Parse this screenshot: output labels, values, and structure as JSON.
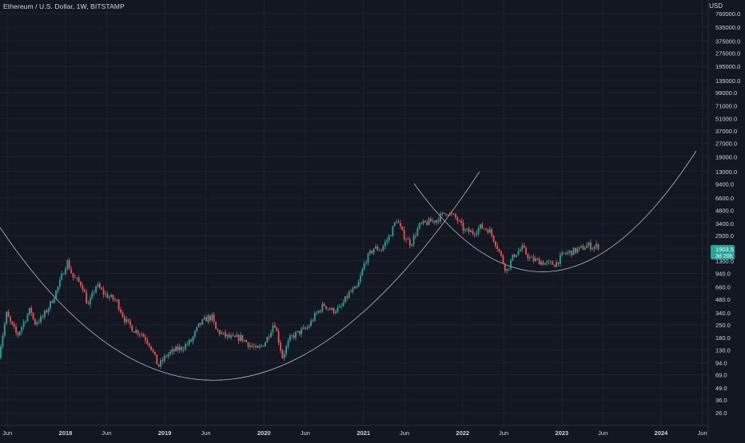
{
  "header": {
    "title": "Ethereum / U.S. Dollar, 1W, BITSTAMP",
    "currency": "USD"
  },
  "price_badge": {
    "price": "1903.5",
    "countdown": "3d 20h",
    "color": "#26a69a"
  },
  "colors": {
    "background": "#131722",
    "grid": "#1e222d",
    "axis_text": "#d1d4dc",
    "up": "#26a69a",
    "down": "#ef5350",
    "curve": "#b2b5be"
  },
  "chart_data": {
    "type": "candlestick",
    "scale": "log",
    "title": "Ethereum / U.S. Dollar, 1W, BITSTAMP",
    "ylabel": "USD",
    "ylim": [
      22,
      1000000
    ],
    "grid": true,
    "y_ticks": [
      "760000.0",
      "535000.0",
      "375000.0",
      "275000.0",
      "195000.0",
      "135000.0",
      "99000.0",
      "71000.0",
      "51000.0",
      "37000.0",
      "27000.0",
      "19000.0",
      "13000.0",
      "9400.0",
      "6600.0",
      "4800.0",
      "3400.0",
      "2500.0",
      "1800.0",
      "1300.0",
      "940.0",
      "660.0",
      "480.0",
      "340.0",
      "250.0",
      "180.0",
      "130.0",
      "94.0",
      "69.0",
      "49.0",
      "36.0",
      "26.0"
    ],
    "x_ticks": [
      "Jun",
      "2018",
      "Jun",
      "2019",
      "Jun",
      "2020",
      "Jun",
      "2021",
      "Jun",
      "2022",
      "Jun",
      "2023",
      "Jun",
      "2024",
      "Jun"
    ],
    "x_tick_dates": [
      "2017-06-01",
      "2018-01-01",
      "2018-06-01",
      "2019-01-01",
      "2019-06-01",
      "2020-01-01",
      "2020-06-01",
      "2021-01-01",
      "2021-06-01",
      "2022-01-01",
      "2022-06-01",
      "2023-01-01",
      "2023-06-01",
      "2024-01-01",
      "2024-06-01"
    ],
    "x_range": [
      "2017-05-01",
      "2024-07-01"
    ],
    "price_path": [
      [
        "2017-05-01",
        90
      ],
      [
        "2017-06-05",
        330
      ],
      [
        "2017-06-20",
        260
      ],
      [
        "2017-07-15",
        190
      ],
      [
        "2017-08-15",
        300
      ],
      [
        "2017-09-01",
        380
      ],
      [
        "2017-09-15",
        260
      ],
      [
        "2017-10-15",
        300
      ],
      [
        "2017-11-15",
        440
      ],
      [
        "2017-12-15",
        700
      ],
      [
        "2018-01-13",
        1300
      ],
      [
        "2018-02-05",
        850
      ],
      [
        "2018-03-10",
        700
      ],
      [
        "2018-04-01",
        400
      ],
      [
        "2018-05-01",
        700
      ],
      [
        "2018-06-01",
        550
      ],
      [
        "2018-07-15",
        460
      ],
      [
        "2018-08-15",
        280
      ],
      [
        "2018-09-15",
        220
      ],
      [
        "2018-10-15",
        200
      ],
      [
        "2018-11-15",
        150
      ],
      [
        "2018-12-15",
        85
      ],
      [
        "2019-01-15",
        115
      ],
      [
        "2019-02-15",
        130
      ],
      [
        "2019-03-15",
        140
      ],
      [
        "2019-04-15",
        165
      ],
      [
        "2019-05-15",
        250
      ],
      [
        "2019-06-15",
        300
      ],
      [
        "2019-07-01",
        300
      ],
      [
        "2019-07-15",
        220
      ],
      [
        "2019-08-15",
        190
      ],
      [
        "2019-09-15",
        175
      ],
      [
        "2019-10-15",
        180
      ],
      [
        "2019-11-15",
        150
      ],
      [
        "2019-12-15",
        130
      ],
      [
        "2020-01-15",
        165
      ],
      [
        "2020-02-15",
        270
      ],
      [
        "2020-03-16",
        110
      ],
      [
        "2020-04-15",
        180
      ],
      [
        "2020-05-15",
        205
      ],
      [
        "2020-06-15",
        230
      ],
      [
        "2020-07-15",
        320
      ],
      [
        "2020-08-15",
        420
      ],
      [
        "2020-09-15",
        360
      ],
      [
        "2020-10-15",
        380
      ],
      [
        "2020-11-15",
        560
      ],
      [
        "2020-12-15",
        640
      ],
      [
        "2021-01-15",
        1300
      ],
      [
        "2021-02-15",
        1800
      ],
      [
        "2021-03-15",
        1750
      ],
      [
        "2021-04-15",
        2500
      ],
      [
        "2021-05-10",
        3800
      ],
      [
        "2021-06-01",
        2600
      ],
      [
        "2021-07-01",
        2000
      ],
      [
        "2021-08-01",
        3200
      ],
      [
        "2021-09-01",
        3500
      ],
      [
        "2021-10-01",
        3700
      ],
      [
        "2021-11-10",
        4600
      ],
      [
        "2021-12-15",
        3900
      ],
      [
        "2022-01-15",
        2800
      ],
      [
        "2022-02-15",
        2700
      ],
      [
        "2022-03-15",
        3100
      ],
      [
        "2022-04-15",
        2900
      ],
      [
        "2022-05-15",
        1900
      ],
      [
        "2022-06-18",
        1000
      ],
      [
        "2022-07-15",
        1500
      ],
      [
        "2022-08-15",
        1800
      ],
      [
        "2022-09-15",
        1350
      ],
      [
        "2022-10-15",
        1300
      ],
      [
        "2022-11-15",
        1200
      ],
      [
        "2022-12-15",
        1200
      ],
      [
        "2023-01-15",
        1550
      ],
      [
        "2023-02-15",
        1650
      ],
      [
        "2023-03-15",
        1750
      ],
      [
        "2023-04-15",
        1950
      ],
      [
        "2023-05-01",
        1850
      ],
      [
        "2023-05-20",
        1903.5
      ]
    ]
  }
}
